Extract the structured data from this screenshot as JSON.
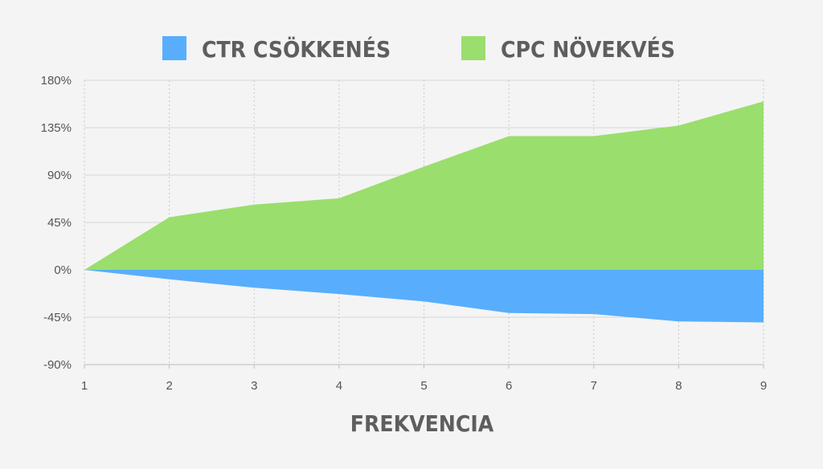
{
  "chart_data": {
    "type": "area",
    "x": [
      1,
      2,
      3,
      4,
      5,
      6,
      7,
      8,
      9
    ],
    "xlabel": "FREKVENCIA",
    "ylabel": "",
    "ylim": [
      -90,
      180
    ],
    "y_ticks": [
      "180%",
      "135%",
      "90%",
      "45%",
      "0%",
      "-45%",
      "-90%"
    ],
    "x_ticks": [
      "1",
      "2",
      "3",
      "4",
      "5",
      "6",
      "7",
      "8",
      "9"
    ],
    "grid": "vertical dotted, horizontal solid",
    "legend_position": "top",
    "series": [
      {
        "name": "CTR CSÖKKENÉS",
        "color": "#58aefc",
        "values": [
          0,
          -9,
          -17,
          -23,
          -30,
          -41,
          -42,
          -49,
          -50
        ]
      },
      {
        "name": "CPC NÖVEKVÉS",
        "color": "#9ade6d",
        "values": [
          0,
          50,
          62,
          68,
          98,
          127,
          127,
          137,
          160
        ]
      }
    ]
  }
}
